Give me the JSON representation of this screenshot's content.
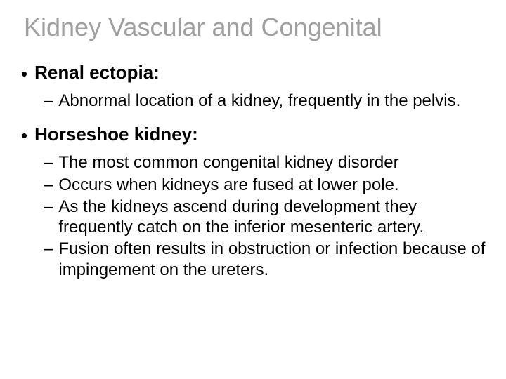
{
  "title": "Kidney Vascular and Congenital",
  "colors": {
    "title": "#9f9f9f",
    "body_text": "#000000",
    "background": "#ffffff"
  },
  "typography": {
    "title_fontsize": 36,
    "bullet_fontsize": 26,
    "sub_fontsize": 24,
    "font_family": "Arial"
  },
  "sections": [
    {
      "label": "Renal ectopia:",
      "subs": [
        "Abnormal location of a kidney, frequently in the pelvis."
      ]
    },
    {
      "label": "Horseshoe kidney:",
      "subs": [
        "The most common congenital kidney disorder",
        "Occurs when kidneys are fused at lower pole.",
        "As the kidneys ascend during development they frequently catch on the inferior mesenteric artery.",
        "Fusion often results in obstruction or infection because of impingement on the ureters."
      ]
    }
  ]
}
